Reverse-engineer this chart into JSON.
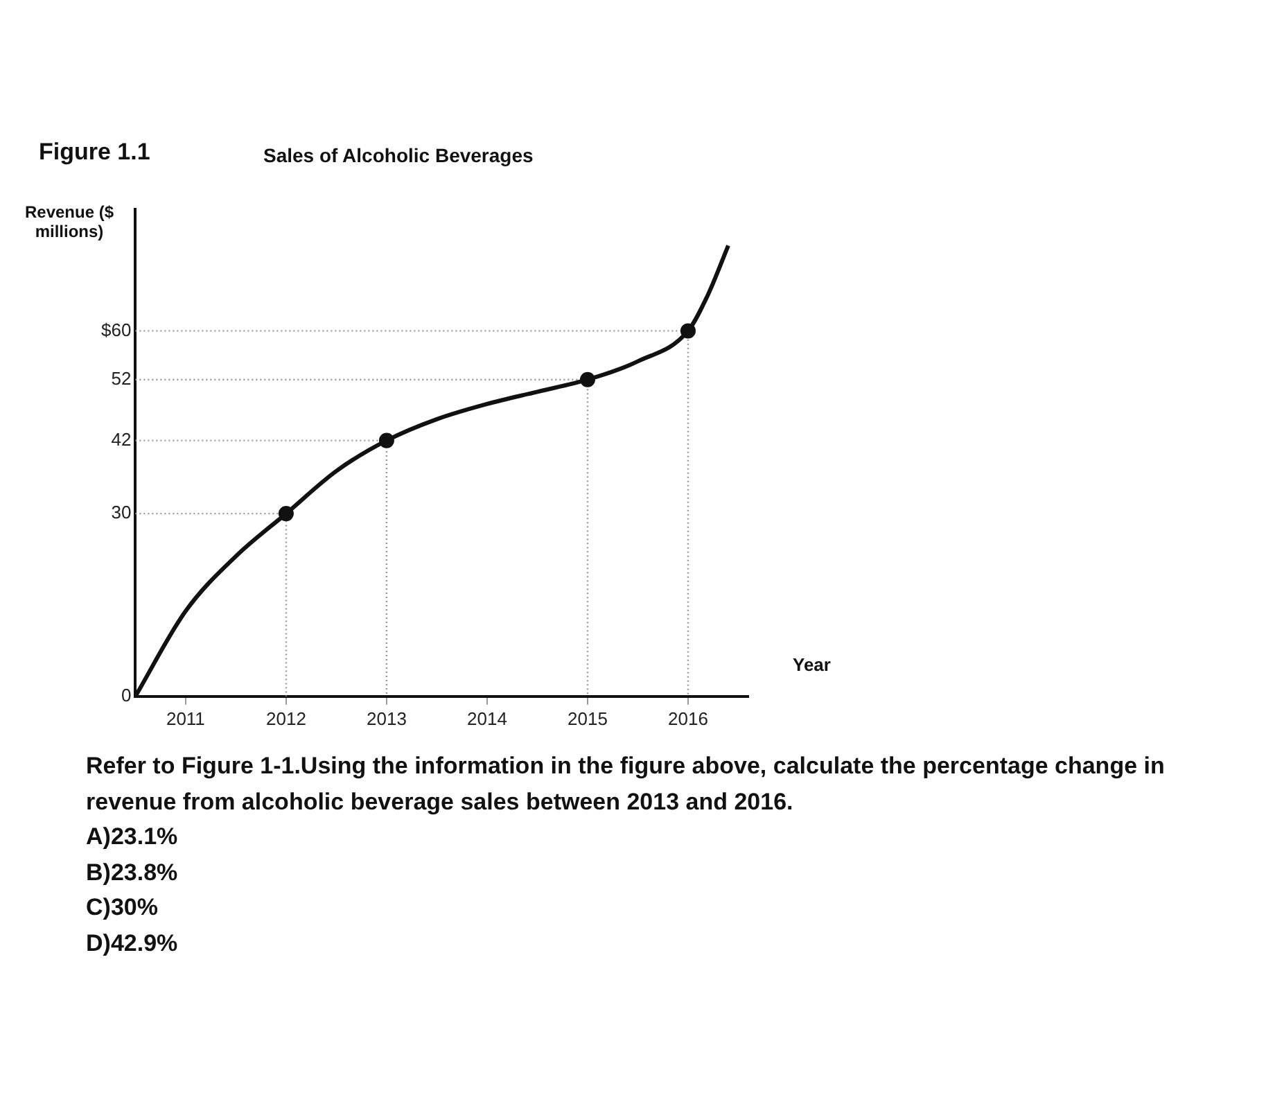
{
  "chart_data": {
    "type": "line",
    "title": "Sales of Alcoholic Beverages",
    "xlabel": "Year",
    "ylabel": "Revenue ($ millions)",
    "annotations": [
      "Figure 1.1",
      "Refer to Figure 1-1.Using the information in the figure above, calculate the percentage change in revenue from alcoholic beverage sales between 2013 and 2016.",
      "A)23.1%",
      "B)23.8%",
      "C)30%",
      "D)42.9%"
    ],
    "series": [
      {
        "type": "line",
        "marker": "none",
        "color": "#111111",
        "x": [
          2010.5,
          2011,
          2011.5,
          2012,
          2012.5,
          2013,
          2013.5,
          2014,
          2014.5,
          2015,
          2015.5,
          2016,
          2016.2,
          2016.4
        ],
        "values": [
          0,
          14,
          23,
          30,
          37,
          42,
          45.5,
          48,
          50,
          52,
          55,
          60,
          66,
          74
        ]
      },
      {
        "type": "line",
        "marker": "none",
        "color": "#999999",
        "line_style": "dotted",
        "x": [
          2010.5,
          2012,
          2012
        ],
        "values": [
          30,
          30,
          0
        ]
      },
      {
        "type": "line",
        "marker": "none",
        "color": "#999999",
        "line_style": "dotted",
        "x": [
          2010.5,
          2013,
          2013
        ],
        "values": [
          42,
          42,
          0
        ]
      },
      {
        "type": "line",
        "marker": "none",
        "color": "#999999",
        "line_style": "dotted",
        "x": [
          2010.5,
          2015,
          2015
        ],
        "values": [
          52,
          52,
          0
        ]
      },
      {
        "type": "line",
        "marker": "none",
        "color": "#999999",
        "line_style": "dotted",
        "x": [
          2010.5,
          2016,
          2016
        ],
        "values": [
          60,
          60,
          0
        ]
      },
      {
        "type": "scatter",
        "marker": "circle",
        "color": "#111111",
        "x": [
          2012,
          2013,
          2015,
          2016
        ],
        "values": [
          30,
          42,
          52,
          60
        ]
      }
    ],
    "xlim": [
      2010.5,
      2016.6
    ],
    "xticks": [
      2011,
      2012,
      2013,
      2014,
      2015,
      2016
    ],
    "ylim": [
      0,
      80
    ],
    "yticks": [
      0,
      30,
      42,
      52,
      {
        "value": 60,
        "label": "$60"
      }
    ],
    "grid": false,
    "legend": false
  }
}
